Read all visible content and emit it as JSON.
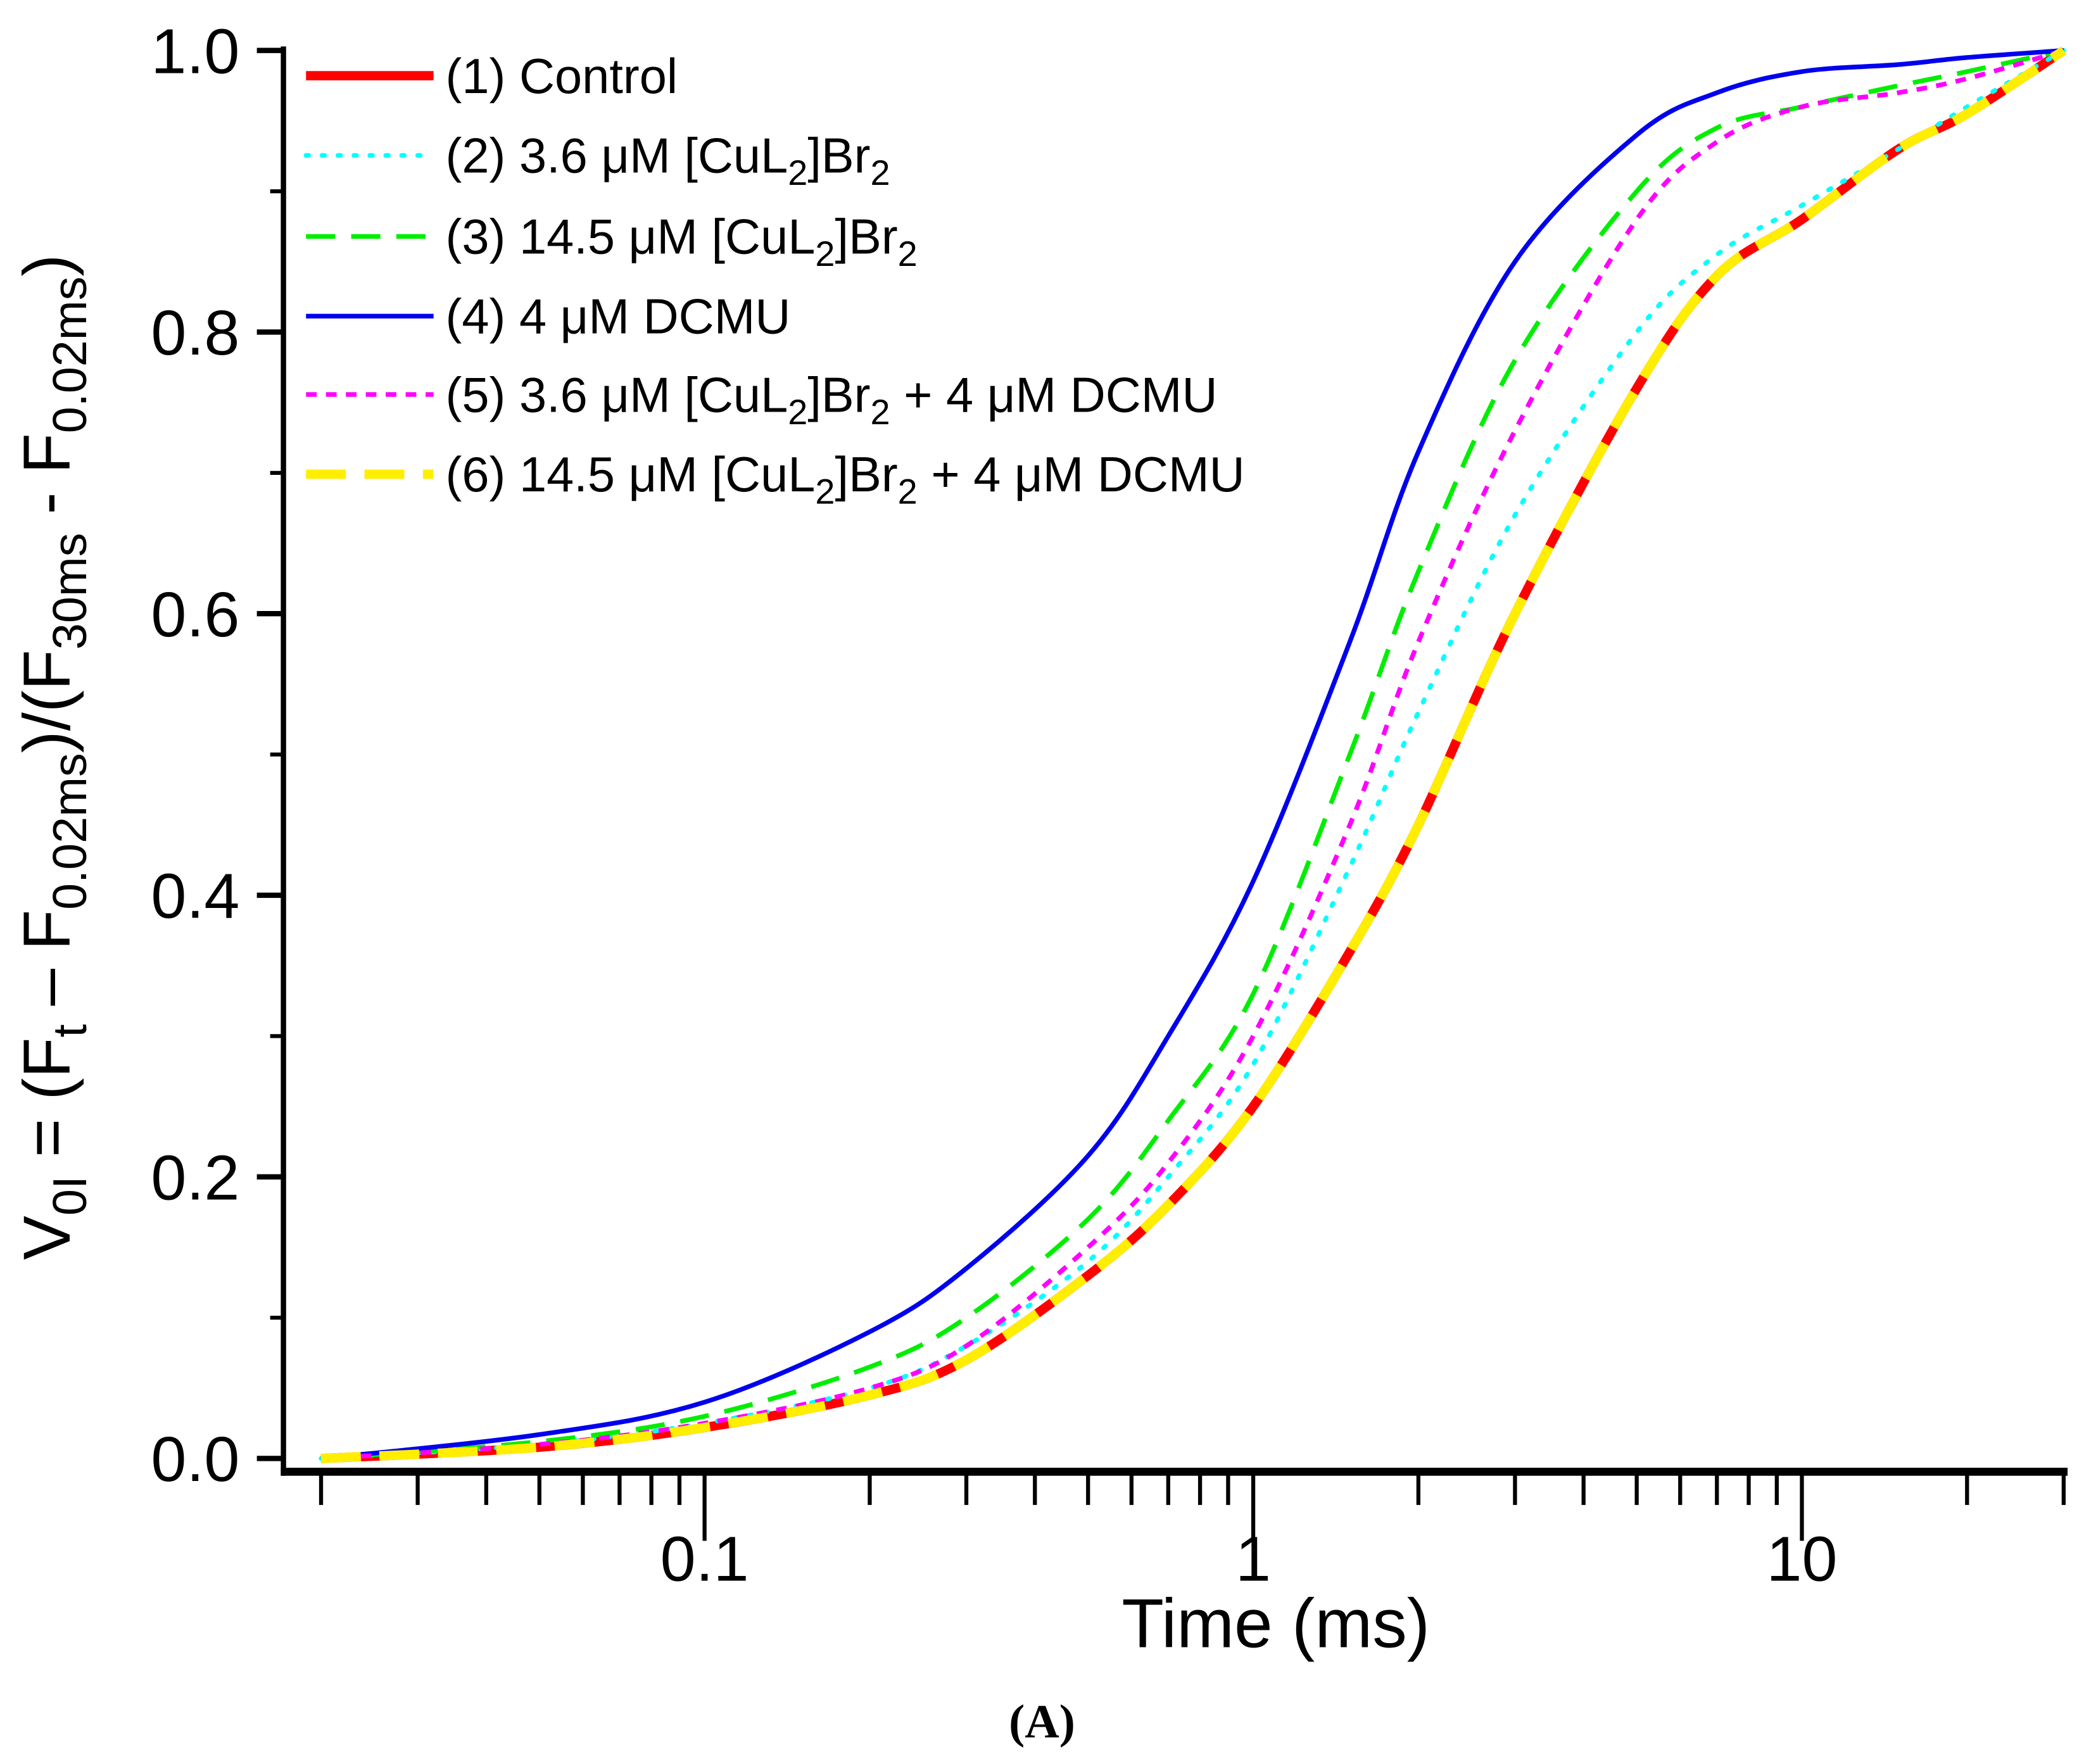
{
  "chart_data": {
    "type": "line",
    "title": "",
    "caption": "(A)",
    "xlabel": "Time (ms)",
    "xscale": "log",
    "xlim": [
      0.02,
      30
    ],
    "x_ticks": [
      {
        "value": 0.1,
        "label": "0.1"
      },
      {
        "value": 1,
        "label": "1"
      },
      {
        "value": 10,
        "label": "10"
      }
    ],
    "ylabel_parts": [
      {
        "t": "V"
      },
      {
        "t": "0I",
        "sub": true
      },
      {
        "t": " = (F"
      },
      {
        "t": "t",
        "sub": true
      },
      {
        "t": " – F"
      },
      {
        "t": "0.02ms",
        "sub": true
      },
      {
        "t": ")/(F"
      },
      {
        "t": "30ms",
        "sub": true
      },
      {
        "t": " - F"
      },
      {
        "t": "0.02ms",
        "sub": true
      },
      {
        "t": ")"
      }
    ],
    "ylim": [
      0,
      1
    ],
    "y_ticks": [
      {
        "value": 0,
        "label": "0.0"
      },
      {
        "value": 0.2,
        "label": "0.2"
      },
      {
        "value": 0.4,
        "label": "0.4"
      },
      {
        "value": 0.6,
        "label": "0.6"
      },
      {
        "value": 0.8,
        "label": "0.8"
      },
      {
        "value": 1,
        "label": "1.0"
      }
    ],
    "grid": false,
    "legend_position": "top-left",
    "x": [
      0.02,
      0.05,
      0.1,
      0.2,
      0.3,
      0.5,
      0.7,
      1,
      1.5,
      2,
      3,
      5,
      7,
      10,
      15,
      20,
      30
    ],
    "series": [
      {
        "name": "(1) Control",
        "label_parts": [
          {
            "t": "(1) Control"
          }
        ],
        "color": "#ff0000",
        "style": "solid",
        "width": 7,
        "values": [
          0,
          0.008,
          0.022,
          0.045,
          0.07,
          0.13,
          0.18,
          0.25,
          0.36,
          0.45,
          0.6,
          0.76,
          0.84,
          0.88,
          0.93,
          0.955,
          1
        ]
      },
      {
        "name": "(2) 3.6 μM [CuL2]Br2",
        "label_parts": [
          {
            "t": "(2) 3.6 μM [CuL"
          },
          {
            "t": "2",
            "sub": true
          },
          {
            "t": "]Br"
          },
          {
            "t": "2",
            "sub": true
          }
        ],
        "color": "#00ffff",
        "style": "dot",
        "width": 3.5,
        "values": [
          0,
          0.01,
          0.025,
          0.05,
          0.08,
          0.14,
          0.2,
          0.28,
          0.42,
          0.53,
          0.67,
          0.8,
          0.855,
          0.89,
          0.93,
          0.96,
          1
        ]
      },
      {
        "name": "(3) 14.5 μM [CuL2]Br2",
        "label_parts": [
          {
            "t": "(3) 14.5 μM [CuL"
          },
          {
            "t": "2",
            "sub": true
          },
          {
            "t": "]Br"
          },
          {
            "t": "2",
            "sub": true
          }
        ],
        "color": "#00ee00",
        "style": "dash",
        "width": 3.5,
        "values": [
          0,
          0.012,
          0.03,
          0.065,
          0.1,
          0.17,
          0.24,
          0.33,
          0.5,
          0.63,
          0.78,
          0.9,
          0.945,
          0.96,
          0.975,
          0.985,
          1
        ]
      },
      {
        "name": "(4) 4 μM DCMU",
        "label_parts": [
          {
            "t": "(4) 4 μM DCMU"
          }
        ],
        "color": "#0000ee",
        "style": "solid",
        "width": 3.5,
        "values": [
          0,
          0.017,
          0.04,
          0.09,
          0.135,
          0.215,
          0.3,
          0.41,
          0.58,
          0.715,
          0.85,
          0.94,
          0.97,
          0.985,
          0.99,
          0.995,
          1
        ]
      },
      {
        "name": "(5) 3.6 μM [CuL2]Br2 + 4 μM DCMU",
        "label_parts": [
          {
            "t": "(5) 3.6 μM [CuL"
          },
          {
            "t": "2",
            "sub": true
          },
          {
            "t": "]Br"
          },
          {
            "t": "2",
            "sub": true
          },
          {
            "t": " + 4 μM DCMU"
          }
        ],
        "color": "#ff00ff",
        "style": "shortdash",
        "width": 3.5,
        "values": [
          0,
          0.01,
          0.025,
          0.05,
          0.08,
          0.15,
          0.21,
          0.3,
          0.45,
          0.58,
          0.73,
          0.88,
          0.935,
          0.96,
          0.97,
          0.98,
          1
        ]
      },
      {
        "name": "(6) 14.5 μM [CuL2]Br2 + 4 μM DCMU",
        "label_parts": [
          {
            "t": "(6) 14.5 μM [CuL"
          },
          {
            "t": "2",
            "sub": true
          },
          {
            "t": "]Br"
          },
          {
            "t": "2",
            "sub": true
          },
          {
            "t": " + 4 μM DCMU"
          }
        ],
        "color": "#ffee00",
        "style": "longdash",
        "width": 7,
        "values": [
          0,
          0.008,
          0.022,
          0.045,
          0.07,
          0.13,
          0.18,
          0.25,
          0.36,
          0.45,
          0.6,
          0.76,
          0.84,
          0.88,
          0.93,
          0.955,
          1
        ]
      }
    ]
  }
}
